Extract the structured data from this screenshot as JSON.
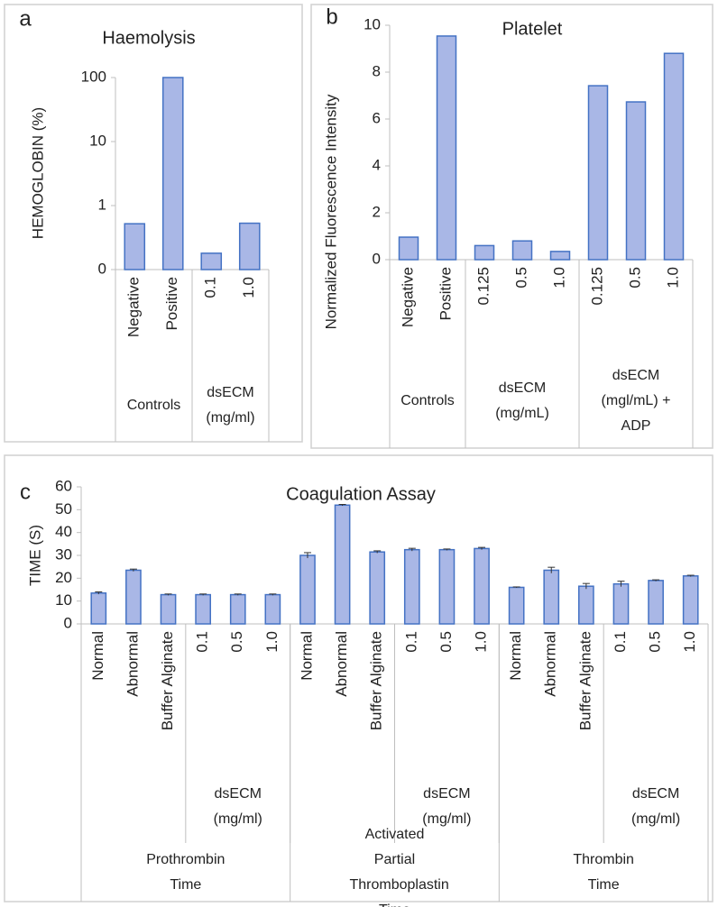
{
  "chart_data": [
    {
      "type": "bar",
      "panel_label": "a",
      "title": "Haemolysis",
      "ylabel": "HEMOGLOBIN (%)",
      "log": true,
      "grid": false,
      "color": "#a9b7e6",
      "edge_color": "#4472c4",
      "ylim": [
        0.1,
        100
      ],
      "yticks": [
        {
          "value": 0.1,
          "label": "0"
        },
        1,
        10,
        100
      ],
      "groups": [
        {
          "name": "Controls",
          "categories": [
            "Negative",
            "Positive"
          ],
          "values": [
            0.52,
            100
          ]
        },
        {
          "name": "dsECM (mg/ml)",
          "categories": [
            "0.1",
            "1.0"
          ],
          "values": [
            0.18,
            0.53
          ]
        }
      ]
    },
    {
      "type": "bar",
      "panel_label": "b",
      "title": "Platelet",
      "ylabel": "Normalized Fluorescence Intensity",
      "log": false,
      "grid": false,
      "color": "#a9b7e6",
      "edge_color": "#4472c4",
      "ylim": [
        0,
        10
      ],
      "yticks": [
        0,
        2,
        4,
        6,
        8,
        10
      ],
      "groups": [
        {
          "name": "Controls",
          "categories": [
            "Negative",
            "Positive"
          ],
          "values": [
            0.96,
            9.54
          ]
        },
        {
          "name": "dsECM (mg/mL)",
          "categories": [
            "0.125",
            "0.5",
            "1.0"
          ],
          "values": [
            0.6,
            0.8,
            0.35
          ]
        },
        {
          "name": "dsECM (mgl/mL) + ADP",
          "categories": [
            "0.125",
            "0.5",
            "1.0"
          ],
          "values": [
            7.42,
            6.73,
            8.8
          ]
        }
      ]
    },
    {
      "type": "bar",
      "panel_label": "c",
      "title": "Coagulation  Assay",
      "ylabel": "TIME (S)",
      "log": false,
      "grid": false,
      "color": "#a9b7e6",
      "edge_color": "#4472c4",
      "ylim": [
        0,
        60
      ],
      "yticks": [
        0,
        10,
        20,
        30,
        40,
        50,
        60
      ],
      "groups": [
        {
          "name": "Prothrombin Time",
          "subgroups": [
            {
              "name": null,
              "categories": [
                "Normal",
                "Abnormal",
                "Buffer Alginate"
              ],
              "values": [
                13.5,
                23.5,
                12.8
              ],
              "errors": [
                0.5,
                0.5,
                0.3
              ]
            },
            {
              "name": "dsECM (mg/ml)",
              "categories": [
                "0.1",
                "0.5",
                "1.0"
              ],
              "values": [
                12.8,
                12.8,
                12.8
              ],
              "errors": [
                0.3,
                0.3,
                0.3
              ]
            }
          ]
        },
        {
          "name": "Activated Partial Thromboplastin Time",
          "subgroups": [
            {
              "name": null,
              "categories": [
                "Normal",
                "Abnormal",
                "Buffer Alginate"
              ],
              "values": [
                30,
                52,
                31.5
              ],
              "errors": [
                1.2,
                0.3,
                0.5
              ]
            },
            {
              "name": "dsECM (mg/ml)",
              "categories": [
                "0.1",
                "0.5",
                "1.0"
              ],
              "values": [
                32.5,
                32.5,
                33
              ],
              "errors": [
                0.6,
                0.3,
                0.5
              ]
            }
          ]
        },
        {
          "name": "Thrombin Time",
          "subgroups": [
            {
              "name": null,
              "categories": [
                "Normal",
                "Abnormal",
                "Buffer Alginate"
              ],
              "values": [
                16,
                23.5,
                16.5
              ],
              "errors": [
                0.2,
                1.3,
                1.2
              ]
            },
            {
              "name": "dsECM (mg/ml)",
              "categories": [
                "0.1",
                "0.5",
                "1.0"
              ],
              "values": [
                17.5,
                19,
                21
              ],
              "errors": [
                1.2,
                0.3,
                0.3
              ]
            }
          ]
        }
      ]
    }
  ]
}
